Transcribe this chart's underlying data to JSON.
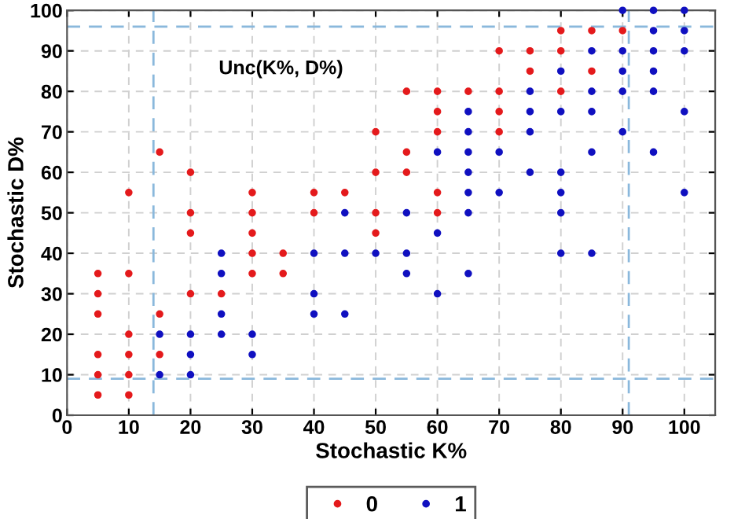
{
  "chart_data": {
    "type": "scatter",
    "xlabel": "Stochastic K%",
    "ylabel": "Stochastic D%",
    "annotations": [
      "Unc(K%, D%)"
    ],
    "xlim": [
      0,
      105
    ],
    "ylim": [
      0,
      100
    ],
    "xticks": [
      0,
      10,
      20,
      30,
      40,
      50,
      60,
      70,
      80,
      90,
      100
    ],
    "yticks": [
      0,
      10,
      20,
      30,
      40,
      50,
      60,
      70,
      80,
      90,
      100
    ],
    "grid": true,
    "legend": "bottom",
    "marker": "circle",
    "ref_lines": [
      {
        "axis": "x",
        "value": 14,
        "color": "#8ab8dc",
        "line_style": "dashed"
      },
      {
        "axis": "x",
        "value": 91,
        "color": "#8ab8dc",
        "line_style": "dashed"
      },
      {
        "axis": "y",
        "value": 9,
        "color": "#8ab8dc",
        "line_style": "dashed"
      },
      {
        "axis": "y",
        "value": 96,
        "color": "#8ab8dc",
        "line_style": "dashed"
      }
    ],
    "series": [
      {
        "name": "0",
        "color": "#e41a1c",
        "x": [
          5,
          5,
          5,
          5,
          5,
          5,
          10,
          10,
          10,
          10,
          10,
          10,
          15,
          15,
          15,
          20,
          20,
          20,
          20,
          25,
          30,
          30,
          30,
          30,
          30,
          35,
          35,
          40,
          40,
          45,
          50,
          50,
          50,
          50,
          55,
          55,
          55,
          60,
          60,
          60,
          60,
          60,
          65,
          70,
          70,
          70,
          70,
          75,
          75,
          80,
          80,
          80,
          85,
          85,
          90
        ],
        "values": [
          35,
          30,
          25,
          15,
          10,
          5,
          55,
          35,
          20,
          15,
          10,
          5,
          65,
          25,
          15,
          60,
          50,
          45,
          30,
          30,
          55,
          50,
          45,
          40,
          35,
          40,
          35,
          55,
          50,
          55,
          70,
          60,
          50,
          45,
          80,
          65,
          60,
          80,
          75,
          70,
          55,
          50,
          80,
          90,
          80,
          75,
          70,
          90,
          85,
          95,
          90,
          80,
          95,
          85,
          95
        ]
      },
      {
        "name": "1",
        "color": "#1010c0",
        "x": [
          15,
          15,
          20,
          20,
          20,
          25,
          25,
          25,
          25,
          30,
          30,
          40,
          40,
          40,
          45,
          45,
          45,
          50,
          55,
          55,
          55,
          60,
          60,
          60,
          65,
          65,
          65,
          65,
          65,
          65,
          65,
          70,
          70,
          75,
          75,
          75,
          75,
          80,
          80,
          80,
          80,
          80,
          80,
          85,
          85,
          85,
          85,
          85,
          90,
          90,
          90,
          90,
          90,
          95,
          95,
          95,
          95,
          95,
          95,
          100,
          100,
          100,
          100,
          100
        ],
        "values": [
          20,
          10,
          20,
          15,
          10,
          40,
          35,
          25,
          20,
          20,
          15,
          40,
          30,
          25,
          50,
          40,
          25,
          40,
          50,
          40,
          35,
          65,
          45,
          30,
          75,
          70,
          65,
          60,
          55,
          50,
          35,
          65,
          55,
          80,
          75,
          70,
          60,
          85,
          75,
          60,
          55,
          50,
          40,
          90,
          80,
          75,
          65,
          40,
          100,
          90,
          85,
          80,
          70,
          100,
          95,
          90,
          85,
          80,
          65,
          100,
          95,
          90,
          75,
          55
        ]
      }
    ]
  }
}
